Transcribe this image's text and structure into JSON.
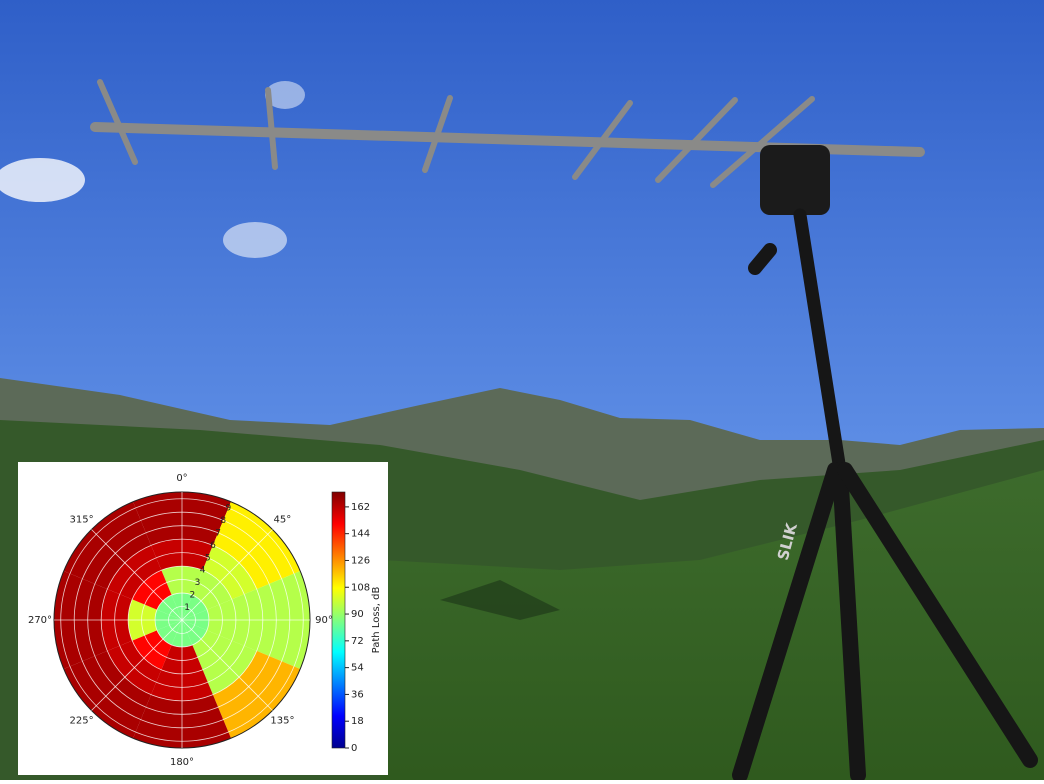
{
  "photo": {
    "tripod_brand": "SLIK"
  },
  "chart_data": {
    "type": "polar-heatmap",
    "colormap": "jet",
    "theta_ticks": [
      {
        "value": 0,
        "label": "0°"
      },
      {
        "value": 45,
        "label": "45°"
      },
      {
        "value": 90,
        "label": "90°"
      },
      {
        "value": 135,
        "label": "135°"
      },
      {
        "value": 180,
        "label": "180°"
      },
      {
        "value": 225,
        "label": "225°"
      },
      {
        "value": 270,
        "label": "270°"
      },
      {
        "value": 315,
        "label": "315°"
      }
    ],
    "rlim": [
      0,
      9.5
    ],
    "rticks": [
      1,
      2,
      3,
      4,
      5,
      6,
      7,
      8,
      9
    ],
    "theta_bins": [
      -22.5,
      22.5,
      67.5,
      112.5,
      157.5,
      202.5,
      247.5,
      292.5,
      337.5
    ],
    "r_bins": [
      0,
      2,
      4,
      6,
      9.5
    ],
    "values": [
      [
        85,
        85,
        85,
        85,
        85,
        85,
        85,
        85
      ],
      [
        95,
        95,
        95,
        95,
        160,
        150,
        100,
        150
      ],
      [
        160,
        100,
        95,
        95,
        160,
        160,
        160,
        160
      ],
      [
        165,
        110,
        95,
        120,
        165,
        165,
        165,
        165
      ]
    ],
    "colorbar_label": "Path Loss, dB",
    "clim": [
      0,
      172
    ],
    "colorbar_ticks": [
      0,
      18,
      36,
      54,
      72,
      90,
      108,
      126,
      144,
      162
    ]
  }
}
